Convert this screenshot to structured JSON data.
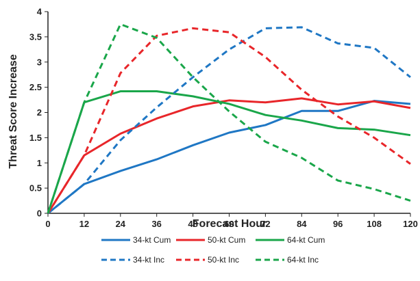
{
  "chart_data": {
    "type": "line",
    "title": "",
    "xlabel": "Forecast Hour",
    "ylabel": "Threat Score Increase",
    "x": [
      0,
      12,
      24,
      36,
      48,
      60,
      72,
      84,
      96,
      108,
      120
    ],
    "xlim": [
      0,
      120
    ],
    "ylim": [
      0,
      4
    ],
    "yticks": [
      "0",
      "0.5",
      "1",
      "1.5",
      "2",
      "2.5",
      "3",
      "3.5",
      "4"
    ],
    "grid": false,
    "legend_position": "bottom",
    "series": [
      {
        "name": "34-kt Cum",
        "color": "#1f77c4",
        "dash": false,
        "values": [
          0,
          0.58,
          0.84,
          1.07,
          1.35,
          1.6,
          1.75,
          2.03,
          2.03,
          2.23,
          2.17
        ]
      },
      {
        "name": "50-kt Cum",
        "color": "#e8262a",
        "dash": false,
        "values": [
          0,
          1.15,
          1.58,
          1.88,
          2.12,
          2.24,
          2.2,
          2.28,
          2.16,
          2.22,
          2.09
        ]
      },
      {
        "name": "64-kt Cum",
        "color": "#1aa64a",
        "dash": false,
        "values": [
          0,
          2.2,
          2.42,
          2.42,
          2.32,
          2.17,
          1.95,
          1.84,
          1.69,
          1.66,
          1.55
        ]
      },
      {
        "name": "34-kt Inc",
        "color": "#1f77c4",
        "dash": true,
        "values": [
          0,
          0.58,
          1.45,
          2.1,
          2.7,
          3.25,
          3.67,
          3.69,
          3.37,
          3.28,
          2.7
        ]
      },
      {
        "name": "50-kt Inc",
        "color": "#e8262a",
        "dash": true,
        "values": [
          0,
          1.15,
          2.78,
          3.52,
          3.67,
          3.59,
          3.1,
          2.45,
          1.92,
          1.5,
          0.98
        ]
      },
      {
        "name": "64-kt Inc",
        "color": "#1aa64a",
        "dash": true,
        "values": [
          0,
          2.2,
          3.75,
          3.48,
          2.7,
          2.02,
          1.42,
          1.1,
          0.65,
          0.48,
          0.25
        ]
      }
    ]
  }
}
